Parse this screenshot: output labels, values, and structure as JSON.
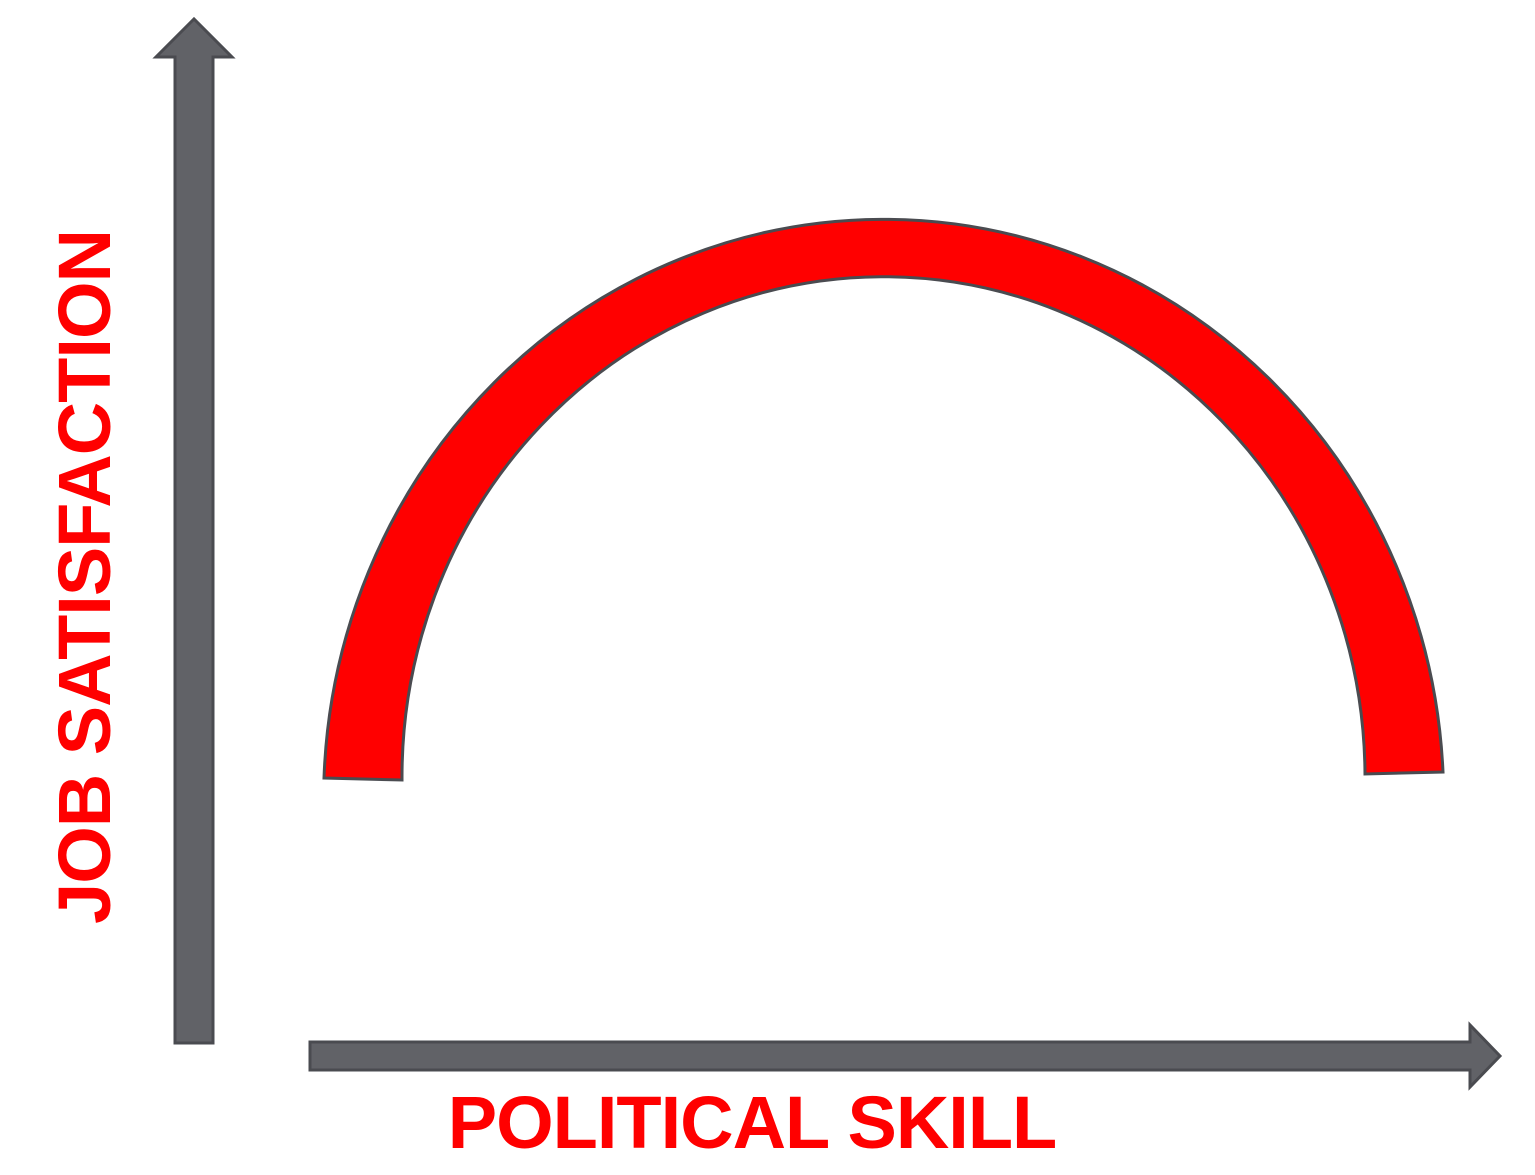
{
  "diagram": {
    "x_axis_label": "POLITICAL SKILL",
    "y_axis_label": "JOB SATISFACTION",
    "curve_shape": "inverted-u",
    "colors": {
      "axis_fill": "#616267",
      "axis_stroke": "#4a4b50",
      "curve_fill": "#ff0000",
      "curve_stroke": "#4a4b50",
      "label": "#ff0000"
    }
  }
}
